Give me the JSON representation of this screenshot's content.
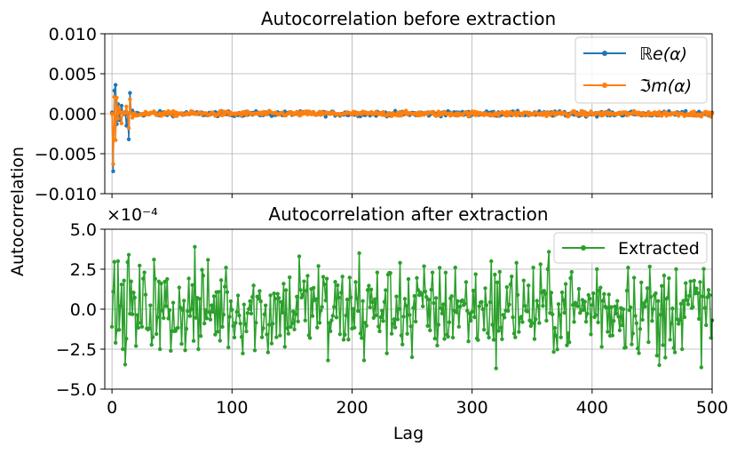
{
  "colors": {
    "re": "#1f77b4",
    "im": "#ff7f0e",
    "extracted": "#2ca02c",
    "grid": "#b0b0b0"
  },
  "figure": {
    "ylabel": "Autocorrelation",
    "xlabel": "Lag"
  },
  "chart_data": [
    {
      "type": "line",
      "title": "Autocorrelation before extraction",
      "xlim": [
        -6,
        500
      ],
      "ylim": [
        -0.01,
        0.01
      ],
      "xticks": [
        0,
        100,
        200,
        300,
        400,
        500
      ],
      "yticks": [
        -0.01,
        -0.005,
        0.0,
        0.005,
        0.01
      ],
      "ytick_labels": [
        "−0.010",
        "−0.005",
        "0.000",
        "0.005",
        "0.010"
      ],
      "grid": true,
      "legend_position": "top-right",
      "x": "integer lags 0 to 500",
      "series": [
        {
          "name": "ℝe(α)",
          "color": "#1f77b4",
          "key_values": [
            [
              1,
              -0.0072
            ],
            [
              2,
              0.0029
            ],
            [
              3,
              0.0036
            ],
            [
              4,
              -0.0013
            ],
            [
              5,
              0.0012
            ],
            [
              6,
              -0.0008
            ],
            [
              8,
              0.001
            ],
            [
              12,
              -0.0015
            ],
            [
              14,
              -0.0032
            ],
            [
              15,
              0.0026
            ],
            [
              17,
              0.0004
            ]
          ],
          "tail_amplitude": 0.0003
        },
        {
          "name": "ℑm(α)",
          "color": "#ff7f0e",
          "key_values": [
            [
              1,
              -0.0063
            ],
            [
              2,
              0.0021
            ],
            [
              3,
              -0.0033
            ],
            [
              4,
              0.002
            ],
            [
              5,
              -0.0006
            ],
            [
              6,
              0.0007
            ],
            [
              8,
              -0.0012
            ],
            [
              12,
              0.0009
            ],
            [
              14,
              -0.0018
            ],
            [
              15,
              0.0018
            ],
            [
              17,
              -0.0005
            ]
          ],
          "tail_amplitude": 0.0003
        }
      ]
    },
    {
      "type": "line",
      "title": "Autocorrelation after extraction",
      "scale_label": "×10⁻⁴",
      "xlabel": "Lag",
      "xlim": [
        -6,
        500
      ],
      "ylim": [
        -5.0,
        5.0
      ],
      "xticks": [
        0,
        100,
        200,
        300,
        400,
        500
      ],
      "yticks": [
        -5.0,
        -2.5,
        0.0,
        2.5,
        5.0
      ],
      "ytick_labels": [
        "−5.0",
        "−2.5",
        "0.0",
        "2.5",
        "5.0"
      ],
      "grid": true,
      "legend_position": "top-right",
      "x": "integer lags 0 to 500",
      "series": [
        {
          "name": "Extracted",
          "color": "#2ca02c",
          "key_values": [
            [
              0,
              -1.1
            ],
            [
              1,
              1.1
            ],
            [
              3,
              -2.1
            ],
            [
              5,
              3.0
            ],
            [
              9,
              -2.5
            ],
            [
              14,
              3.4
            ],
            [
              20,
              -2.3
            ],
            [
              35,
              3.1
            ],
            [
              40,
              -2.5
            ],
            [
              49,
              -2.6
            ],
            [
              69,
              3.9
            ],
            [
              72,
              -2.5
            ],
            [
              95,
              2.6
            ],
            [
              130,
              -2.7
            ],
            [
              156,
              3.3
            ],
            [
              172,
              2.7
            ],
            [
              180,
              -3.2
            ],
            [
              206,
              3.5
            ],
            [
              210,
              -3.2
            ],
            [
              240,
              2.9
            ],
            [
              250,
              -3.0
            ],
            [
              286,
              2.6
            ],
            [
              316,
              3.0
            ],
            [
              320,
              -3.7
            ],
            [
              337,
              2.9
            ],
            [
              363,
              2.5
            ],
            [
              404,
              2.5
            ],
            [
              430,
              2.6
            ],
            [
              454,
              -2.9
            ],
            [
              456,
              -3.5
            ],
            [
              470,
              2.5
            ],
            [
              475,
              -2.5
            ],
            [
              500,
              -0.7
            ]
          ],
          "amplitude": 2.5
        }
      ]
    }
  ]
}
